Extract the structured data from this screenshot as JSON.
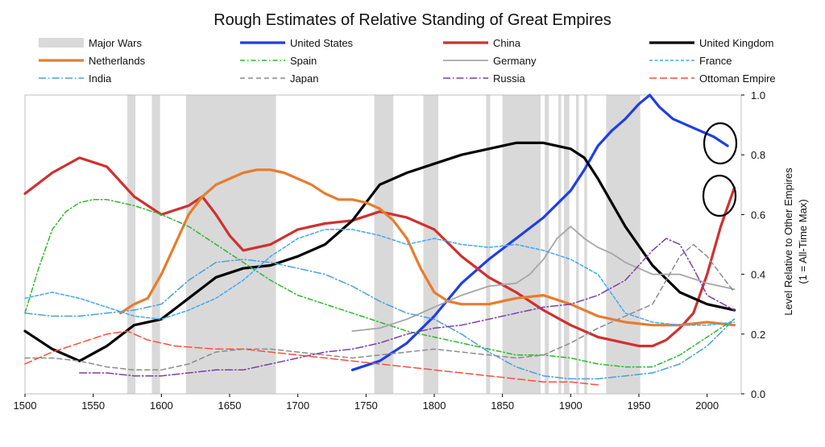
{
  "chart_data": {
    "type": "line",
    "title": "Rough Estimates of Relative Standing of Great Empires",
    "ylabel_line1": "Level Relative to Other Empires",
    "ylabel_line2": "(1 = All-Time Max)",
    "xlim": [
      1500,
      2025
    ],
    "ylim": [
      0.0,
      1.0
    ],
    "x_ticks": [
      "1500",
      "1550",
      "1600",
      "1650",
      "1700",
      "1750",
      "1800",
      "1850",
      "1900",
      "1950",
      "2000"
    ],
    "y_ticks": [
      "0.0",
      "0.2",
      "0.4",
      "0.6",
      "0.8",
      "1.0"
    ],
    "grid": false,
    "legend_position": "top",
    "major_wars_label": "Major Wars",
    "major_wars_color": "#d9d9d9",
    "major_wars": [
      [
        1575,
        1581
      ],
      [
        1593,
        1599
      ],
      [
        1618,
        1684
      ],
      [
        1756,
        1770
      ],
      [
        1792,
        1803
      ],
      [
        1838,
        1841
      ],
      [
        1850,
        1878
      ],
      [
        1881,
        1884
      ],
      [
        1891,
        1893
      ],
      [
        1895,
        1899
      ],
      [
        1904,
        1906
      ],
      [
        1910,
        1912
      ],
      [
        1926,
        1951
      ]
    ],
    "series": [
      {
        "name": "United States",
        "color": "#1f3ee6",
        "dash": "",
        "width": 3.2,
        "x": [
          1740,
          1760,
          1780,
          1800,
          1820,
          1840,
          1860,
          1880,
          1900,
          1910,
          1920,
          1930,
          1940,
          1950,
          1958,
          1965,
          1975,
          1990,
          2005,
          2015
        ],
        "y": [
          0.08,
          0.11,
          0.17,
          0.26,
          0.37,
          0.45,
          0.52,
          0.59,
          0.68,
          0.75,
          0.83,
          0.88,
          0.92,
          0.97,
          1.0,
          0.96,
          0.92,
          0.89,
          0.86,
          0.83
        ]
      },
      {
        "name": "China",
        "color": "#d03030",
        "dash": "",
        "width": 3.2,
        "x": [
          1500,
          1520,
          1540,
          1560,
          1580,
          1600,
          1620,
          1630,
          1640,
          1650,
          1660,
          1680,
          1700,
          1720,
          1740,
          1760,
          1780,
          1800,
          1820,
          1840,
          1860,
          1880,
          1900,
          1920,
          1940,
          1950,
          1960,
          1970,
          1980,
          1990,
          2000,
          2010,
          2020
        ],
        "y": [
          0.67,
          0.74,
          0.79,
          0.76,
          0.66,
          0.6,
          0.63,
          0.66,
          0.6,
          0.53,
          0.48,
          0.5,
          0.55,
          0.57,
          0.58,
          0.61,
          0.59,
          0.55,
          0.46,
          0.39,
          0.34,
          0.28,
          0.23,
          0.19,
          0.17,
          0.16,
          0.16,
          0.18,
          0.22,
          0.27,
          0.4,
          0.56,
          0.69
        ]
      },
      {
        "name": "United Kingdom",
        "color": "#000000",
        "dash": "",
        "width": 3.2,
        "x": [
          1500,
          1520,
          1540,
          1560,
          1580,
          1600,
          1620,
          1640,
          1660,
          1680,
          1700,
          1720,
          1740,
          1760,
          1780,
          1800,
          1820,
          1840,
          1860,
          1880,
          1900,
          1910,
          1920,
          1940,
          1960,
          1980,
          2000,
          2020
        ],
        "y": [
          0.21,
          0.15,
          0.11,
          0.16,
          0.23,
          0.25,
          0.32,
          0.39,
          0.42,
          0.43,
          0.46,
          0.5,
          0.58,
          0.7,
          0.74,
          0.77,
          0.8,
          0.82,
          0.84,
          0.84,
          0.82,
          0.79,
          0.72,
          0.56,
          0.43,
          0.34,
          0.3,
          0.28
        ]
      },
      {
        "name": "Netherlands",
        "color": "#e87c2c",
        "dash": "",
        "width": 3.2,
        "x": [
          1570,
          1580,
          1590,
          1600,
          1610,
          1620,
          1630,
          1640,
          1650,
          1660,
          1670,
          1680,
          1690,
          1700,
          1710,
          1720,
          1730,
          1740,
          1750,
          1760,
          1770,
          1780,
          1790,
          1800,
          1810,
          1820,
          1840,
          1860,
          1880,
          1900,
          1920,
          1940,
          1960,
          1980,
          2000,
          2020
        ],
        "y": [
          0.27,
          0.3,
          0.32,
          0.4,
          0.5,
          0.6,
          0.66,
          0.7,
          0.72,
          0.74,
          0.75,
          0.75,
          0.74,
          0.72,
          0.7,
          0.67,
          0.65,
          0.65,
          0.64,
          0.62,
          0.58,
          0.52,
          0.42,
          0.34,
          0.31,
          0.3,
          0.3,
          0.32,
          0.33,
          0.3,
          0.26,
          0.24,
          0.23,
          0.23,
          0.24,
          0.23
        ]
      },
      {
        "name": "Spain",
        "color": "#2db82d",
        "dash": "6,3,1.5,3",
        "width": 1.5,
        "x": [
          1500,
          1510,
          1520,
          1530,
          1540,
          1550,
          1560,
          1580,
          1600,
          1620,
          1640,
          1660,
          1680,
          1700,
          1720,
          1740,
          1760,
          1780,
          1800,
          1820,
          1840,
          1860,
          1880,
          1900,
          1920,
          1940,
          1960,
          1980,
          2000,
          2020
        ],
        "y": [
          0.27,
          0.42,
          0.55,
          0.61,
          0.64,
          0.65,
          0.65,
          0.63,
          0.6,
          0.56,
          0.5,
          0.44,
          0.38,
          0.33,
          0.3,
          0.27,
          0.24,
          0.21,
          0.19,
          0.17,
          0.15,
          0.13,
          0.13,
          0.12,
          0.1,
          0.09,
          0.09,
          0.13,
          0.19,
          0.25
        ]
      },
      {
        "name": "Germany",
        "color": "#a6a6a6",
        "dash": "",
        "width": 1.8,
        "x": [
          1740,
          1760,
          1780,
          1800,
          1820,
          1840,
          1860,
          1870,
          1880,
          1890,
          1900,
          1910,
          1920,
          1930,
          1940,
          1950,
          1960,
          1980,
          2000,
          2020
        ],
        "y": [
          0.21,
          0.22,
          0.25,
          0.29,
          0.33,
          0.36,
          0.37,
          0.4,
          0.45,
          0.52,
          0.56,
          0.52,
          0.49,
          0.47,
          0.44,
          0.42,
          0.4,
          0.4,
          0.37,
          0.35
        ]
      },
      {
        "name": "France",
        "color": "#3fa9f5",
        "dash": "4,2.5",
        "width": 1.5,
        "x": [
          1500,
          1520,
          1540,
          1560,
          1580,
          1600,
          1620,
          1640,
          1660,
          1680,
          1700,
          1720,
          1740,
          1760,
          1780,
          1800,
          1820,
          1840,
          1860,
          1880,
          1900,
          1920,
          1940,
          1960,
          1980,
          2000,
          2020
        ],
        "y": [
          0.32,
          0.34,
          0.32,
          0.29,
          0.26,
          0.25,
          0.28,
          0.32,
          0.38,
          0.46,
          0.52,
          0.55,
          0.55,
          0.53,
          0.5,
          0.52,
          0.5,
          0.49,
          0.5,
          0.48,
          0.45,
          0.4,
          0.27,
          0.24,
          0.23,
          0.23,
          0.24
        ]
      },
      {
        "name": "India",
        "color": "#4aa0d8",
        "dash": "9,3,1.5,3",
        "width": 1.5,
        "x": [
          1500,
          1520,
          1540,
          1560,
          1580,
          1600,
          1620,
          1640,
          1660,
          1680,
          1700,
          1720,
          1740,
          1760,
          1780,
          1800,
          1820,
          1840,
          1860,
          1880,
          1900,
          1920,
          1940,
          1960,
          1980,
          2000,
          2020
        ],
        "y": [
          0.27,
          0.26,
          0.26,
          0.27,
          0.28,
          0.3,
          0.38,
          0.44,
          0.45,
          0.44,
          0.42,
          0.4,
          0.36,
          0.31,
          0.27,
          0.25,
          0.2,
          0.14,
          0.09,
          0.06,
          0.05,
          0.05,
          0.06,
          0.07,
          0.1,
          0.16,
          0.25
        ]
      },
      {
        "name": "Japan",
        "color": "#8c8c8c",
        "dash": "6,4",
        "width": 1.5,
        "x": [
          1500,
          1520,
          1540,
          1560,
          1580,
          1600,
          1620,
          1640,
          1660,
          1680,
          1700,
          1720,
          1740,
          1760,
          1780,
          1800,
          1820,
          1840,
          1860,
          1880,
          1900,
          1920,
          1940,
          1960,
          1970,
          1980,
          1990,
          2000,
          2020
        ],
        "y": [
          0.12,
          0.12,
          0.11,
          0.09,
          0.08,
          0.08,
          0.1,
          0.14,
          0.15,
          0.15,
          0.14,
          0.13,
          0.12,
          0.13,
          0.14,
          0.15,
          0.14,
          0.13,
          0.12,
          0.13,
          0.17,
          0.22,
          0.26,
          0.3,
          0.38,
          0.46,
          0.5,
          0.46,
          0.34
        ]
      },
      {
        "name": "Russia",
        "color": "#7b3fa8",
        "dash": "9,3,1.5,3",
        "width": 1.5,
        "x": [
          1540,
          1560,
          1580,
          1600,
          1620,
          1640,
          1660,
          1680,
          1700,
          1720,
          1740,
          1760,
          1780,
          1800,
          1820,
          1840,
          1860,
          1880,
          1900,
          1920,
          1940,
          1960,
          1970,
          1980,
          1990,
          2000,
          2020
        ],
        "y": [
          0.07,
          0.07,
          0.06,
          0.06,
          0.07,
          0.08,
          0.08,
          0.1,
          0.12,
          0.14,
          0.15,
          0.17,
          0.2,
          0.22,
          0.23,
          0.25,
          0.27,
          0.29,
          0.3,
          0.33,
          0.38,
          0.48,
          0.52,
          0.5,
          0.42,
          0.33,
          0.28
        ]
      },
      {
        "name": "Ottoman Empire",
        "color": "#ff4d3a",
        "dash": "9,4",
        "width": 1.5,
        "x": [
          1500,
          1520,
          1540,
          1560,
          1575,
          1590,
          1610,
          1640,
          1660,
          1680,
          1700,
          1720,
          1740,
          1760,
          1780,
          1800,
          1820,
          1840,
          1860,
          1880,
          1900,
          1920
        ],
        "y": [
          0.1,
          0.14,
          0.17,
          0.2,
          0.21,
          0.18,
          0.16,
          0.15,
          0.15,
          0.14,
          0.13,
          0.12,
          0.11,
          0.1,
          0.09,
          0.08,
          0.07,
          0.06,
          0.05,
          0.04,
          0.04,
          0.03
        ]
      }
    ]
  }
}
